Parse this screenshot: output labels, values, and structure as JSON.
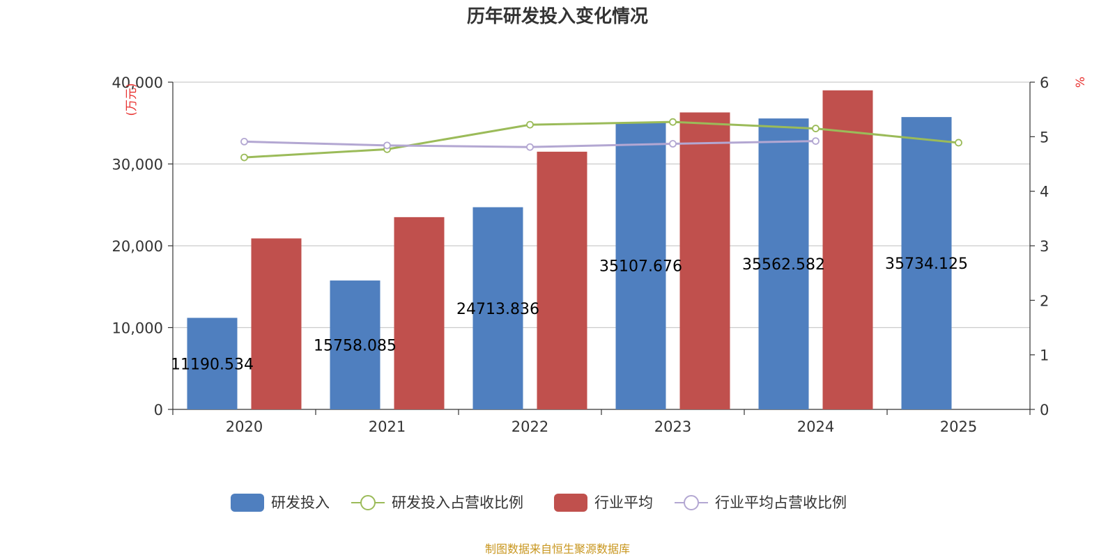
{
  "chart_data": {
    "type": "bar+line",
    "title": "历年研发投入变化情况",
    "categories": [
      "2020",
      "2021",
      "2022",
      "2023",
      "2024",
      "2025"
    ],
    "left_axis": {
      "unit": "(万元)",
      "ylim": [
        0,
        40000
      ],
      "ticks": [
        "0",
        "10,000",
        "20,000",
        "30,000",
        "40,000"
      ]
    },
    "right_axis": {
      "unit": "%",
      "ylim": [
        0,
        6
      ],
      "ticks": [
        "0",
        "1",
        "2",
        "3",
        "4",
        "5",
        "6"
      ]
    },
    "bar_series": [
      {
        "name": "研发投入",
        "color": "#4f7fbf",
        "values": [
          11190.534,
          15758.085,
          24713.836,
          35107.676,
          35562.582,
          35734.125
        ],
        "labels": [
          "11190.534",
          "15758.085",
          "24713.836",
          "35107.676",
          "35562.582",
          "35734.125"
        ]
      },
      {
        "name": "行业平均",
        "color": "#c0504d",
        "values": [
          20900,
          23500,
          31500,
          36300,
          39000,
          null
        ]
      }
    ],
    "line_series": [
      {
        "name": "研发投入占营收比例",
        "color": "#9bbb59",
        "values": [
          4.62,
          4.77,
          5.22,
          5.27,
          5.15,
          4.89
        ]
      },
      {
        "name": "行业平均占营收比例",
        "color": "#b3a7d2",
        "values": [
          4.91,
          4.84,
          4.81,
          4.87,
          4.92,
          null
        ]
      }
    ],
    "legend": [
      "研发投入",
      "研发投入占营收比例",
      "行业平均",
      "行业平均占营收比例"
    ],
    "legend_position": "bottom",
    "grid": true
  },
  "source_note": "制图数据来自恒生聚源数据库"
}
